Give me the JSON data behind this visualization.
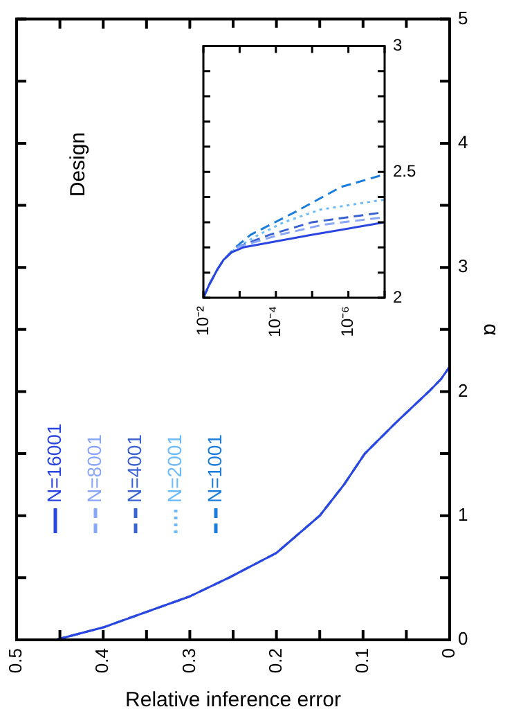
{
  "chart_data": [
    {
      "type": "line",
      "xlabel": "Relative inference error",
      "ylabel": "α",
      "annotations": [
        "Design"
      ],
      "legend": "bottom left",
      "ylim": [
        0,
        5
      ],
      "yticks": [
        0,
        {
          "value": 0.5,
          "label": null
        },
        1,
        {
          "value": 1.5,
          "label": null
        },
        2,
        {
          "value": 2.5,
          "label": null
        },
        3,
        {
          "value": 3.5,
          "label": null
        },
        4,
        {
          "value": 4.5,
          "label": null
        },
        5
      ],
      "xlim": [
        0.5,
        0
      ],
      "xticks": [
        0.5,
        {
          "value": 0.45,
          "label": null
        },
        0.4,
        {
          "value": 0.35,
          "label": null
        },
        0.3,
        {
          "value": 0.25,
          "label": null
        },
        0.2,
        {
          "value": 0.15,
          "label": null
        },
        0.1,
        {
          "value": 0.05,
          "label": null
        },
        0
      ],
      "series": [
        {
          "name": "N=16001",
          "color": "#2a45e0",
          "line_style": "solid",
          "values": [
            0,
            0.1,
            0.2,
            0.35,
            0.5,
            0.7,
            1.0,
            1.25,
            1.5,
            1.75,
            2.0,
            2.1,
            2.2
          ],
          "x": [
            0.455,
            0.4,
            0.36,
            0.3,
            0.255,
            0.2,
            0.15,
            0.122,
            0.098,
            0.062,
            0.024,
            0.01,
            0
          ]
        },
        {
          "name": "N=8001",
          "color": "#8aa6f6",
          "line_style": "dashed",
          "values": [
            0,
            0.1,
            0.2,
            0.35,
            0.5,
            0.7,
            1.0,
            1.25,
            1.5,
            1.75,
            2.0,
            2.1,
            2.2
          ],
          "x": [
            0.455,
            0.4,
            0.36,
            0.3,
            0.255,
            0.2,
            0.15,
            0.122,
            0.098,
            0.062,
            0.024,
            0.01,
            0
          ]
        },
        {
          "name": "N=4001",
          "color": "#3a62d2",
          "line_style": "dashed",
          "values": [
            0,
            0.1,
            0.2,
            0.35,
            0.5,
            0.7,
            1.0,
            1.25,
            1.5,
            1.75,
            2.0,
            2.1,
            2.2
          ],
          "x": [
            0.455,
            0.4,
            0.36,
            0.3,
            0.255,
            0.2,
            0.15,
            0.122,
            0.098,
            0.062,
            0.024,
            0.01,
            0
          ]
        },
        {
          "name": "N=2001",
          "color": "#6cbaf8",
          "line_style": "dotted",
          "values": [
            0,
            0.1,
            0.2,
            0.35,
            0.5,
            0.7,
            1.0,
            1.25,
            1.5,
            1.75,
            2.0,
            2.1,
            2.2
          ],
          "x": [
            0.455,
            0.4,
            0.36,
            0.3,
            0.255,
            0.2,
            0.15,
            0.122,
            0.098,
            0.062,
            0.024,
            0.01,
            0
          ]
        },
        {
          "name": "N=1001",
          "color": "#1a7ddc",
          "line_style": "dashed",
          "values": [
            0,
            0.1,
            0.2,
            0.35,
            0.5,
            0.7,
            1.0,
            1.25,
            1.5,
            1.75,
            2.0,
            2.1,
            2.2
          ],
          "x": [
            0.455,
            0.4,
            0.36,
            0.3,
            0.255,
            0.2,
            0.15,
            0.122,
            0.098,
            0.062,
            0.024,
            0.01,
            0
          ]
        }
      ]
    },
    {
      "type": "line",
      "log": "x",
      "ylim": [
        2,
        3
      ],
      "yticks": [
        2,
        {
          "value": 2.1,
          "label": null
        },
        {
          "value": 2.2,
          "label": null
        },
        {
          "value": 2.3,
          "label": null
        },
        {
          "value": 2.4,
          "label": null
        },
        2.5,
        {
          "value": 2.6,
          "label": null
        },
        {
          "value": 2.7,
          "label": null
        },
        {
          "value": 2.8,
          "label": null
        },
        {
          "value": 2.9,
          "label": null
        },
        3
      ],
      "xlim": [
        0.01,
        1e-07
      ],
      "xticks": [
        {
          "value": 0.01,
          "label": "10⁻²"
        },
        {
          "value": 0.001,
          "label": null
        },
        {
          "value": 0.0001,
          "label": "10⁻⁴"
        },
        {
          "value": 1e-05,
          "label": null
        },
        {
          "value": 1e-06,
          "label": "10⁻⁶"
        },
        {
          "value": 1e-07,
          "label": null
        }
      ],
      "series": [
        {
          "color": "#2a45e0",
          "line_style": "solid",
          "values": [
            2,
            2.05,
            2.11,
            2.15,
            2.18,
            2.2,
            2.25,
            2.3
          ],
          "x": [
            0.01,
            0.007,
            0.0042,
            0.0028,
            0.0017,
            0.0008,
            1e-05,
            1e-07
          ]
        },
        {
          "color": "#8aa6f6",
          "line_style": "dashed",
          "values": [
            2,
            2.05,
            2.11,
            2.15,
            2.2,
            2.25,
            2.29,
            2.32
          ],
          "x": [
            0.01,
            0.007,
            0.0042,
            0.0028,
            0.0012,
            8e-05,
            5e-06,
            1e-07
          ]
        },
        {
          "color": "#3a62d2",
          "line_style": "dashed",
          "values": [
            2,
            2.05,
            2.11,
            2.15,
            2.2,
            2.25,
            2.3,
            2.34
          ],
          "x": [
            0.01,
            0.007,
            0.0042,
            0.0028,
            0.0012,
            0.00015,
            1e-05,
            1e-07
          ]
        },
        {
          "color": "#6cbaf8",
          "line_style": "dotted",
          "values": [
            2,
            2.05,
            2.11,
            2.15,
            2.2,
            2.25,
            2.3,
            2.35,
            2.39
          ],
          "x": [
            0.01,
            0.007,
            0.0042,
            0.0028,
            0.0012,
            0.0003,
            6e-05,
            6e-06,
            1e-07
          ]
        },
        {
          "color": "#1a7ddc",
          "line_style": "dashed",
          "values": [
            2,
            2.05,
            2.11,
            2.15,
            2.2,
            2.25,
            2.34,
            2.44,
            2.49
          ],
          "x": [
            0.01,
            0.007,
            0.0042,
            0.0028,
            0.0013,
            0.0005,
            3e-05,
            1.6e-06,
            1e-07
          ]
        }
      ]
    }
  ]
}
